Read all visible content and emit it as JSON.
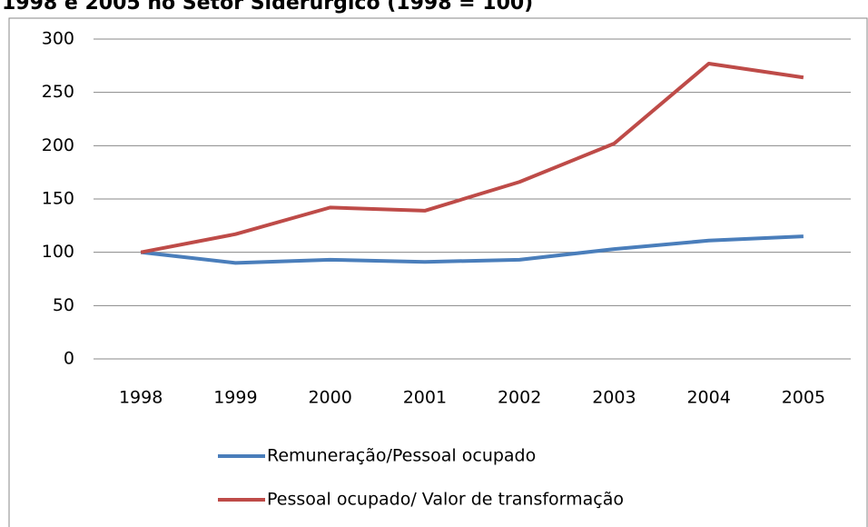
{
  "chart_data": {
    "type": "line",
    "title": "1998 e 2005 no Setor Siderúrgico (1998 = 100)",
    "categories": [
      "1998",
      "1999",
      "2000",
      "2001",
      "2002",
      "2003",
      "2004",
      "2005"
    ],
    "series": [
      {
        "name": "Remuneração/Pessoal ocupado",
        "color": "#4a7ebb",
        "values": [
          100,
          90,
          93,
          91,
          93,
          103,
          111,
          115
        ]
      },
      {
        "name": "Pessoal ocupado/ Valor de transformação",
        "color": "#be4b48",
        "values": [
          100,
          117,
          142,
          139,
          166,
          202,
          277,
          264
        ]
      }
    ],
    "ylim": [
      0,
      300
    ],
    "yticks": [
      0,
      50,
      100,
      150,
      200,
      250,
      300
    ],
    "grid": true,
    "legend": "bottom"
  }
}
